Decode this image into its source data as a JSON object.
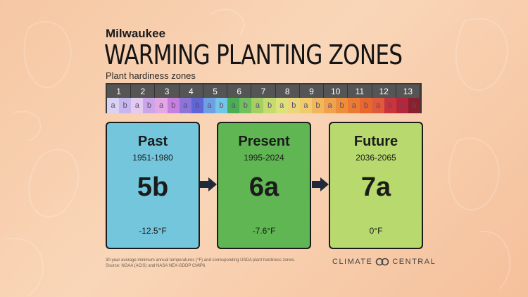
{
  "header": {
    "city": "Milwaukee",
    "title": "WARMING PLANTING ZONES",
    "subtitle": "Plant hardiness zones"
  },
  "scale": {
    "zones": [
      {
        "num": "1",
        "a_color": "#d9d2f2",
        "b_color": "#c6b8ee"
      },
      {
        "num": "2",
        "a_color": "#e4c9f1",
        "b_color": "#cda6ea"
      },
      {
        "num": "3",
        "a_color": "#e3a7e6",
        "b_color": "#c77fe0"
      },
      {
        "num": "4",
        "a_color": "#8c75d8",
        "b_color": "#5f66d8"
      },
      {
        "num": "5",
        "a_color": "#6da1e4",
        "b_color": "#73c6e8"
      },
      {
        "num": "6",
        "a_color": "#4cae54",
        "b_color": "#70c05e"
      },
      {
        "num": "7",
        "a_color": "#a4cf63",
        "b_color": "#c6dd6d"
      },
      {
        "num": "8",
        "a_color": "#dee27a",
        "b_color": "#ecd67a"
      },
      {
        "num": "9",
        "a_color": "#f1cc6c",
        "b_color": "#f0b75f"
      },
      {
        "num": "10",
        "a_color": "#f0a24c",
        "b_color": "#ee8e3a"
      },
      {
        "num": "11",
        "a_color": "#eb7b34",
        "b_color": "#e7672f"
      },
      {
        "num": "12",
        "a_color": "#de5a3a",
        "b_color": "#c8353d"
      },
      {
        "num": "13",
        "a_color": "#b2283a",
        "b_color": "#8a1f2d"
      }
    ],
    "half_a": "a",
    "half_b": "b"
  },
  "cards": [
    {
      "name": "Past",
      "years": "1951-1980",
      "zone": "5b",
      "temp": "-12.5°F",
      "color": "#74c6dc"
    },
    {
      "name": "Present",
      "years": "1995-2024",
      "zone": "6a",
      "temp": "-7.6°F",
      "color": "#5fb652"
    },
    {
      "name": "Future",
      "years": "2036-2065",
      "zone": "7a",
      "temp": "0°F",
      "color": "#b7d96e"
    }
  ],
  "footer": {
    "note_line1": "30-year average minimum annual temperatures (°F) and corresponding USDA plant hardiness zones.",
    "note_line2": "Source: NOAA (ACIS) and NASA NEX-GDDP CMIP6.",
    "logo_left": "CLIMATE",
    "logo_right": "CENTRAL"
  }
}
